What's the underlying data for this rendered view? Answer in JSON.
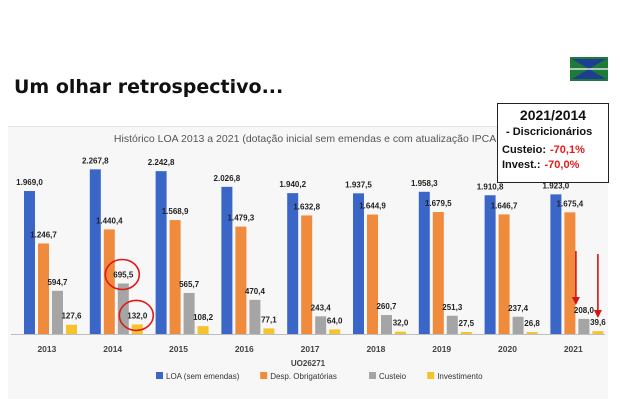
{
  "slide": {
    "title": "Um olhar retrospectivo..."
  },
  "summary_box": {
    "title": "2021/2014",
    "subtitle": "- Discricionários",
    "rows": [
      {
        "label": "Custeio:",
        "value": "-70,1%"
      },
      {
        "label": "Invest.:",
        "value": "-70,0%"
      }
    ]
  },
  "logo": {
    "icon": "university-logo",
    "colors": [
      "#1f7a3a",
      "#1d3f8f"
    ]
  },
  "colors": {
    "loa": "#3a66c8",
    "desp": "#f08a3c",
    "custeio": "#a5a5a5",
    "invest": "#f5c32c",
    "annotation": "#e01818"
  },
  "chart_data": {
    "type": "bar",
    "title": "Histórico LOA 2013 a 2021 (dotação inicial  sem emendas e com atualização IPCA )",
    "xlabel": "UO26271",
    "ylabel": "",
    "categories": [
      "2013",
      "2014",
      "2015",
      "2016",
      "2017",
      "2018",
      "2019",
      "2020",
      "2021"
    ],
    "ylim": [
      0,
      2300
    ],
    "grid": false,
    "legend": "bottom",
    "series": [
      {
        "name": "LOA (sem emendas)",
        "color": "#3a66c8",
        "values": [
          1969.0,
          2267.8,
          2242.8,
          2026.8,
          1940.2,
          1937.5,
          1958.3,
          1910.8,
          1923.0
        ],
        "labels": [
          "1.969,0",
          "2.267,8",
          "2.242,8",
          "2.026,8",
          "1.940,2",
          "1.937,5",
          "1.958,3",
          "1.910,8",
          "1.923,0"
        ]
      },
      {
        "name": "Desp. Obrigatórias",
        "color": "#f08a3c",
        "values": [
          1246.7,
          1440.4,
          1568.9,
          1479.3,
          1632.8,
          1644.9,
          1679.5,
          1646.7,
          1675.4
        ],
        "labels": [
          "1.246,7",
          "1.440,4",
          "1.568,9",
          "1.479,3",
          "1.632,8",
          "1.644,9",
          "1.679,5",
          "1.646,7",
          "1.675,4"
        ]
      },
      {
        "name": "Custeio",
        "color": "#a5a5a5",
        "values": [
          594.7,
          695.5,
          565.7,
          470.4,
          243.4,
          260.7,
          251.3,
          237.4,
          208.0
        ],
        "labels": [
          "594,7",
          "695,5",
          "565,7",
          "470,4",
          "243,4",
          "260,7",
          "251,3",
          "237,4",
          "208,0"
        ]
      },
      {
        "name": "Investimento",
        "color": "#f5c32c",
        "values": [
          127.6,
          132.0,
          108.2,
          77.1,
          64.0,
          32.0,
          27.5,
          26.8,
          39.6
        ],
        "labels": [
          "127,6",
          "132,0",
          "108,2",
          "77,1",
          "64,0",
          "32,0",
          "27,5",
          "26,8",
          "39,6"
        ]
      }
    ],
    "annotations": {
      "circled": [
        {
          "category": "2014",
          "series": "Custeio"
        },
        {
          "category": "2014",
          "series": "Investimento"
        }
      ],
      "arrows": [
        {
          "category": "2021",
          "series": "Custeio"
        },
        {
          "category": "2021",
          "series": "Investimento"
        }
      ]
    }
  }
}
